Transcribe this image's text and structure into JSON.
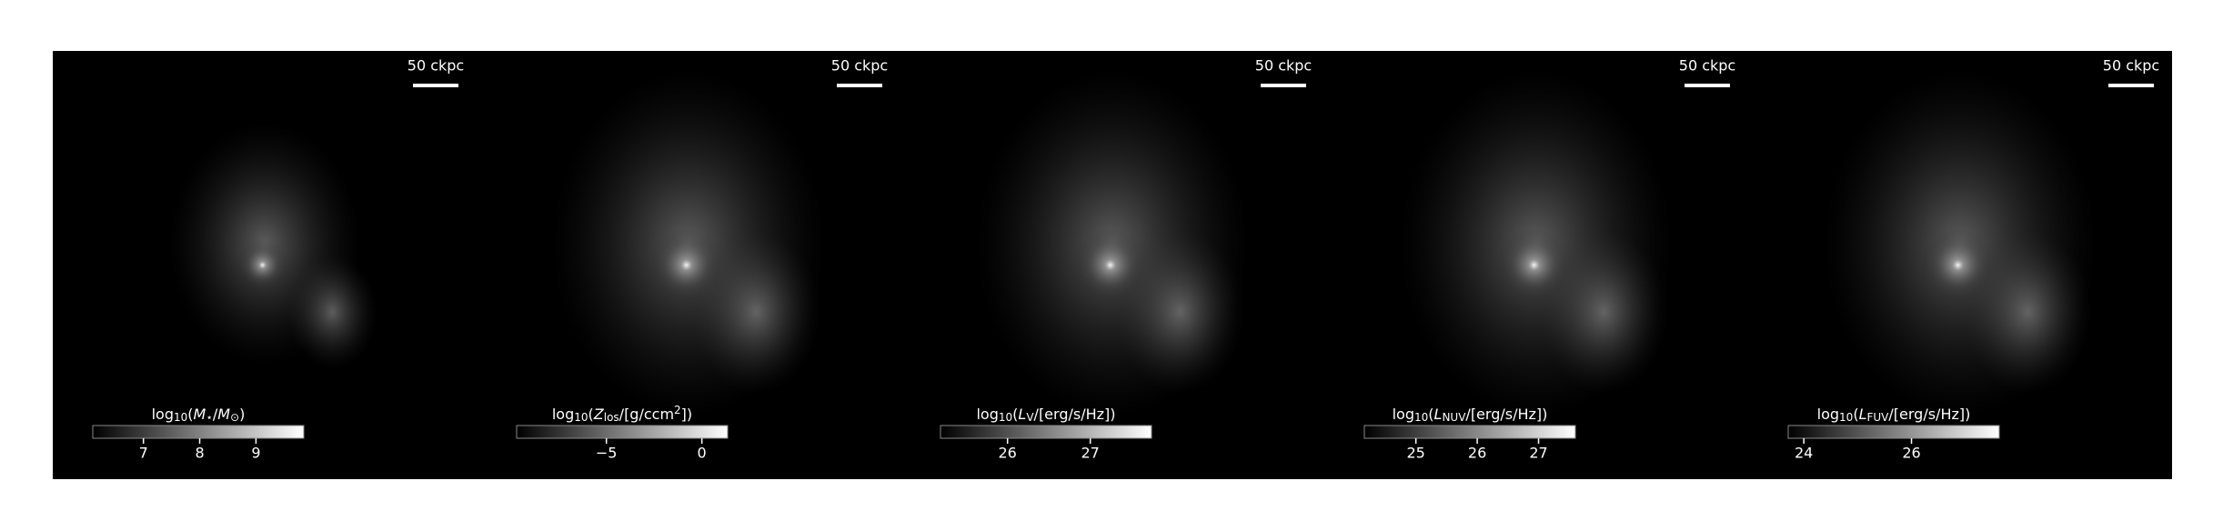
{
  "chart_data": [
    {
      "type": "image",
      "colormap": "gray",
      "scale_bar": "50 ckpc",
      "colorbar": {
        "label": [
          {
            "text": "log",
            "style": "normal"
          },
          {
            "text": "10",
            "style": "sub"
          },
          {
            "text": "(",
            "style": "normal"
          },
          {
            "text": "M",
            "style": "italic"
          },
          {
            "text": "⋆",
            "style": "sub"
          },
          {
            "text": "/",
            "style": "normal"
          },
          {
            "text": "M",
            "style": "italic"
          },
          {
            "text": "⊙",
            "style": "sub"
          },
          {
            "text": ")",
            "style": "normal"
          }
        ],
        "lim": [
          6.1,
          9.85
        ],
        "ticks": [
          7,
          8,
          9
        ]
      }
    },
    {
      "type": "image",
      "colormap": "gray",
      "scale_bar": "50 ckpc",
      "colorbar": {
        "label": [
          {
            "text": "log",
            "style": "normal"
          },
          {
            "text": "10",
            "style": "sub"
          },
          {
            "text": "(",
            "style": "normal"
          },
          {
            "text": "Z",
            "style": "italic"
          },
          {
            "text": "los",
            "style": "sub"
          },
          {
            "text": "/[g/ccm",
            "style": "normal"
          },
          {
            "text": "2",
            "style": "sup"
          },
          {
            "text": "])",
            "style": "normal"
          }
        ],
        "lim": [
          -9.7,
          1.35
        ],
        "ticks": [
          {
            "value": -5,
            "label": "−5"
          },
          0
        ]
      }
    },
    {
      "type": "image",
      "colormap": "gray",
      "scale_bar": "50 ckpc",
      "colorbar": {
        "label": [
          {
            "text": "log",
            "style": "normal"
          },
          {
            "text": "10",
            "style": "sub"
          },
          {
            "text": "(",
            "style": "normal"
          },
          {
            "text": "L",
            "style": "italic"
          },
          {
            "text": "V",
            "style": "sub"
          },
          {
            "text": "/[erg/s/Hz])",
            "style": "normal"
          }
        ],
        "lim": [
          25.19,
          27.74
        ],
        "ticks": [
          26,
          27
        ]
      }
    },
    {
      "type": "image",
      "colormap": "gray",
      "scale_bar": "50 ckpc",
      "colorbar": {
        "label": [
          {
            "text": "log",
            "style": "normal"
          },
          {
            "text": "10",
            "style": "sub"
          },
          {
            "text": "(",
            "style": "normal"
          },
          {
            "text": "L",
            "style": "italic"
          },
          {
            "text": "NUV",
            "style": "sub"
          },
          {
            "text": "/[erg/s/Hz])",
            "style": "normal"
          }
        ],
        "lim": [
          24.16,
          27.6
        ],
        "ticks": [
          25,
          26,
          27
        ]
      }
    },
    {
      "type": "image",
      "colormap": "gray",
      "scale_bar": "50 ckpc",
      "colorbar": {
        "label": [
          {
            "text": "log",
            "style": "normal"
          },
          {
            "text": "10",
            "style": "sub"
          },
          {
            "text": "(",
            "style": "normal"
          },
          {
            "text": "L",
            "style": "italic"
          },
          {
            "text": "FUV",
            "style": "sub"
          },
          {
            "text": "/[erg/s/Hz])",
            "style": "normal"
          }
        ],
        "lim": [
          23.71,
          27.63
        ],
        "ticks": [
          24,
          26
        ]
      }
    }
  ]
}
